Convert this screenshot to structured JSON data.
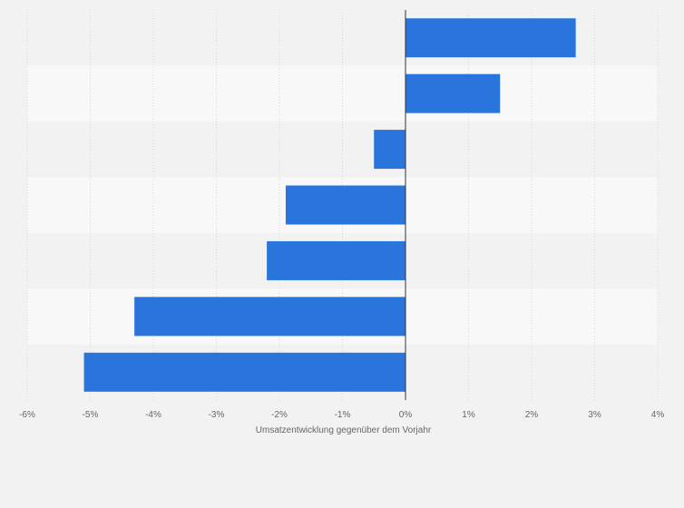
{
  "chart_data": {
    "type": "bar",
    "orientation": "horizontal",
    "categories": [
      "",
      "",
      "",
      "",
      "",
      "",
      ""
    ],
    "values": [
      2.7,
      1.5,
      -0.5,
      -1.9,
      -2.2,
      -4.3,
      -5.1
    ],
    "xlim": [
      -6,
      4
    ],
    "x_ticks": [
      -6,
      -5,
      -4,
      -3,
      -2,
      -1,
      0,
      1,
      2,
      3,
      4
    ],
    "x_tick_labels": [
      "-6%",
      "-5%",
      "-4%",
      "-3%",
      "-2%",
      "-1%",
      "0%",
      "1%",
      "2%",
      "3%",
      "4%"
    ],
    "xlabel": "Umsatzentwicklung gegenüber dem Vorjahr",
    "ylabel": "",
    "title": "",
    "grid": true,
    "legend": "none",
    "colors": {
      "bar": "#2a75dc",
      "band_light": "#f8f8f8",
      "band_dark": "#f2f2f2",
      "grid": "#d9d9d9",
      "zero_line": "#333333",
      "text": "#666666",
      "background": "#f2f2f2"
    }
  }
}
